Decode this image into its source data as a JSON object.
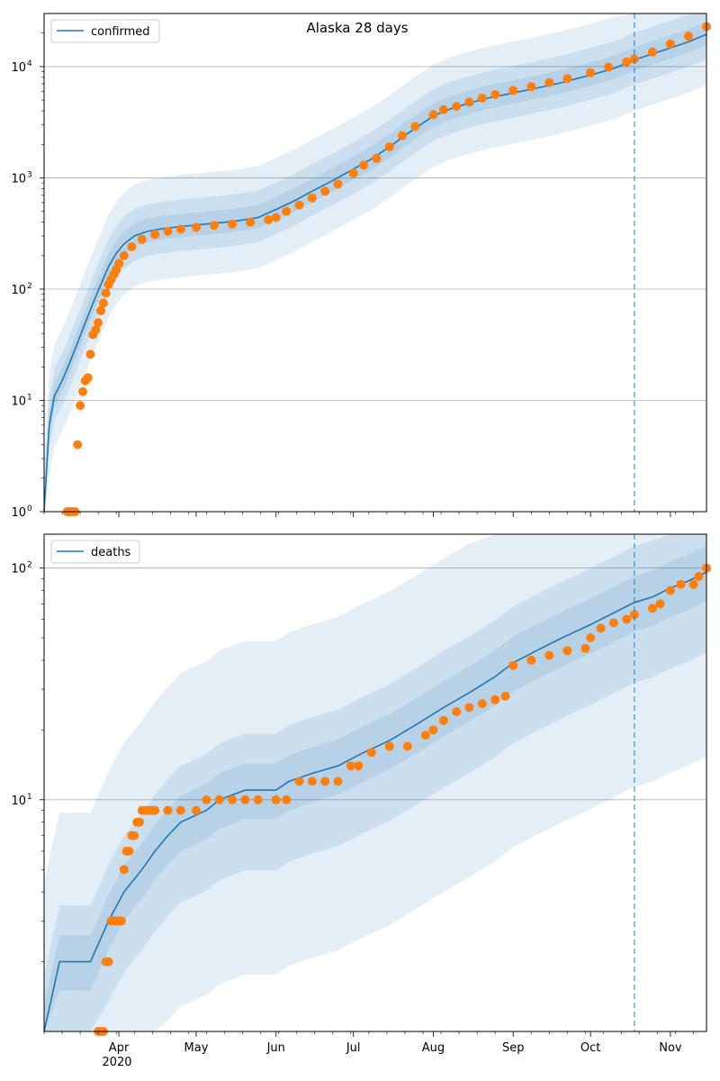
{
  "figure_title": "Alaska 28 days",
  "colors": {
    "model_line": "#1f77b4",
    "observed": "#ff7f0e",
    "band": "#1f77b4",
    "grid": "#b0b0b0",
    "forecast_line": "#1f77b4"
  },
  "x_axis": {
    "labels": [
      {
        "date": "2020-04-01",
        "text": "Apr"
      },
      {
        "date": "2020-05-01",
        "text": "May"
      },
      {
        "date": "2020-06-01",
        "text": "Jun"
      },
      {
        "date": "2020-07-01",
        "text": "Jul"
      },
      {
        "date": "2020-08-01",
        "text": "Aug"
      },
      {
        "date": "2020-09-01",
        "text": "Sep"
      },
      {
        "date": "2020-10-01",
        "text": "Oct"
      },
      {
        "date": "2020-11-01",
        "text": "Nov"
      }
    ],
    "year_label": "2020"
  },
  "chart_data": [
    {
      "type": "line",
      "legend": "confirmed",
      "legend_position": "top-left",
      "yscale": "log",
      "ylim": [
        1,
        30000
      ],
      "xlim": [
        "2020-03-03",
        "2020-11-15"
      ],
      "forecast_date": "2020-10-18",
      "grid": "horizontal",
      "y_ticks": [
        {
          "value": 1,
          "label": "10",
          "exp": "0"
        },
        {
          "value": 10,
          "label": "10",
          "exp": "1"
        },
        {
          "value": 100,
          "label": "10",
          "exp": "2"
        },
        {
          "value": 1000,
          "label": "10",
          "exp": "3"
        },
        {
          "value": 10000,
          "label": "10",
          "exp": "4"
        }
      ],
      "model": {
        "x": [
          "2020-03-03",
          "2020-03-05",
          "2020-03-07",
          "2020-03-10",
          "2020-03-13",
          "2020-03-16",
          "2020-03-19",
          "2020-03-22",
          "2020-03-25",
          "2020-03-28",
          "2020-03-31",
          "2020-04-03",
          "2020-04-07",
          "2020-04-12",
          "2020-04-18",
          "2020-04-25",
          "2020-05-05",
          "2020-05-15",
          "2020-05-25",
          "2020-06-01",
          "2020-06-08",
          "2020-06-15",
          "2020-06-22",
          "2020-07-01",
          "2020-07-08",
          "2020-07-15",
          "2020-07-22",
          "2020-08-01",
          "2020-08-08",
          "2020-08-15",
          "2020-08-22",
          "2020-09-01",
          "2020-09-10",
          "2020-09-20",
          "2020-10-01",
          "2020-10-10",
          "2020-10-18",
          "2020-10-25",
          "2020-11-01",
          "2020-11-08",
          "2020-11-15"
        ],
        "y": [
          1,
          6,
          11,
          15,
          22,
          33,
          50,
          75,
          110,
          160,
          210,
          255,
          300,
          330,
          350,
          365,
          385,
          405,
          440,
          520,
          620,
          760,
          920,
          1200,
          1480,
          1900,
          2500,
          3600,
          4200,
          4700,
          5200,
          5800,
          6400,
          7200,
          8400,
          9600,
          11500,
          13000,
          14700,
          16700,
          19500
        ],
        "band_rel": [
          [
            0.35,
            2.9
          ],
          [
            0.6,
            1.75
          ],
          [
            0.8,
            1.3
          ]
        ]
      },
      "observed": {
        "x": [
          "2020-03-12",
          "2020-03-13",
          "2020-03-14",
          "2020-03-15",
          "2020-03-16",
          "2020-03-17",
          "2020-03-18",
          "2020-03-19",
          "2020-03-20",
          "2020-03-21",
          "2020-03-22",
          "2020-03-23",
          "2020-03-24",
          "2020-03-25",
          "2020-03-26",
          "2020-03-27",
          "2020-03-28",
          "2020-03-29",
          "2020-03-30",
          "2020-03-31",
          "2020-04-01",
          "2020-04-03",
          "2020-04-06",
          "2020-04-10",
          "2020-04-15",
          "2020-04-20",
          "2020-04-25",
          "2020-05-01",
          "2020-05-08",
          "2020-05-15",
          "2020-05-22",
          "2020-05-29",
          "2020-06-01",
          "2020-06-05",
          "2020-06-10",
          "2020-06-15",
          "2020-06-20",
          "2020-06-25",
          "2020-07-01",
          "2020-07-05",
          "2020-07-10",
          "2020-07-15",
          "2020-07-20",
          "2020-07-25",
          "2020-08-01",
          "2020-08-05",
          "2020-08-10",
          "2020-08-15",
          "2020-08-20",
          "2020-08-25",
          "2020-09-01",
          "2020-09-08",
          "2020-09-15",
          "2020-09-22",
          "2020-10-01",
          "2020-10-08",
          "2020-10-15",
          "2020-10-18",
          "2020-10-25",
          "2020-11-01",
          "2020-11-08",
          "2020-11-15"
        ],
        "y": [
          1,
          1,
          1,
          1,
          4,
          9,
          12,
          15,
          16,
          26,
          39,
          43,
          50,
          64,
          75,
          92,
          110,
          122,
          135,
          150,
          170,
          200,
          240,
          280,
          310,
          330,
          345,
          360,
          375,
          385,
          400,
          420,
          440,
          500,
          570,
          660,
          760,
          880,
          1100,
          1300,
          1500,
          1900,
          2400,
          2900,
          3700,
          4100,
          4400,
          4800,
          5200,
          5600,
          6100,
          6600,
          7200,
          7800,
          8800,
          9900,
          11000,
          11700,
          13500,
          16000,
          18800,
          22900
        ]
      }
    },
    {
      "type": "line",
      "legend": "deaths",
      "legend_position": "top-left",
      "yscale": "log",
      "ylim": [
        1,
        140
      ],
      "xlim": [
        "2020-03-03",
        "2020-11-15"
      ],
      "forecast_date": "2020-10-18",
      "grid": "horizontal",
      "y_ticks": [
        {
          "value": 10,
          "label": "10",
          "exp": "1"
        },
        {
          "value": 100,
          "label": "10",
          "exp": "2"
        }
      ],
      "model": {
        "x": [
          "2020-03-03",
          "2020-03-09",
          "2020-03-21",
          "2020-03-28",
          "2020-04-03",
          "2020-04-10",
          "2020-04-15",
          "2020-04-20",
          "2020-04-25",
          "2020-05-05",
          "2020-05-10",
          "2020-05-20",
          "2020-06-01",
          "2020-06-06",
          "2020-06-15",
          "2020-06-25",
          "2020-07-05",
          "2020-07-15",
          "2020-07-25",
          "2020-08-05",
          "2020-08-15",
          "2020-08-25",
          "2020-09-01",
          "2020-09-10",
          "2020-09-20",
          "2020-10-01",
          "2020-10-10",
          "2020-10-18",
          "2020-10-25",
          "2020-11-01",
          "2020-11-08",
          "2020-11-15"
        ],
        "y": [
          1,
          2,
          2,
          3,
          4,
          5,
          6,
          7,
          8,
          9,
          10,
          11,
          11,
          12,
          13,
          14,
          16,
          18,
          21,
          25,
          29,
          34,
          39,
          44,
          50,
          57,
          64,
          71,
          75,
          82,
          88,
          96
        ],
        "band_rel": [
          [
            0.16,
            4.4
          ],
          [
            0.45,
            1.75
          ],
          [
            0.75,
            1.3
          ]
        ]
      },
      "observed": {
        "x": [
          "2020-03-24",
          "2020-03-25",
          "2020-03-26",
          "2020-03-27",
          "2020-03-28",
          "2020-03-29",
          "2020-03-30",
          "2020-03-31",
          "2020-04-01",
          "2020-04-02",
          "2020-04-03",
          "2020-04-04",
          "2020-04-05",
          "2020-04-06",
          "2020-04-07",
          "2020-04-08",
          "2020-04-09",
          "2020-04-10",
          "2020-04-11",
          "2020-04-12",
          "2020-04-13",
          "2020-04-14",
          "2020-04-15",
          "2020-04-20",
          "2020-04-25",
          "2020-05-01",
          "2020-05-05",
          "2020-05-10",
          "2020-05-15",
          "2020-05-20",
          "2020-05-25",
          "2020-06-01",
          "2020-06-05",
          "2020-06-10",
          "2020-06-15",
          "2020-06-20",
          "2020-06-25",
          "2020-06-30",
          "2020-07-03",
          "2020-07-08",
          "2020-07-15",
          "2020-07-22",
          "2020-07-29",
          "2020-08-01",
          "2020-08-05",
          "2020-08-10",
          "2020-08-15",
          "2020-08-20",
          "2020-08-25",
          "2020-08-29",
          "2020-09-01",
          "2020-09-08",
          "2020-09-15",
          "2020-09-22",
          "2020-09-29",
          "2020-10-01",
          "2020-10-05",
          "2020-10-10",
          "2020-10-15",
          "2020-10-18",
          "2020-10-25",
          "2020-10-28",
          "2020-11-01",
          "2020-11-05",
          "2020-11-10",
          "2020-11-12",
          "2020-11-15"
        ],
        "y": [
          1,
          1,
          1,
          2,
          2,
          3,
          3,
          3,
          3,
          3,
          5,
          6,
          6,
          7,
          7,
          8,
          8,
          9,
          9,
          9,
          9,
          9,
          9,
          9,
          9,
          9,
          10,
          10,
          10,
          10,
          10,
          10,
          10,
          12,
          12,
          12,
          12,
          14,
          14,
          16,
          17,
          17,
          19,
          20,
          22,
          24,
          25,
          26,
          27,
          28,
          38,
          40,
          42,
          44,
          45,
          50,
          55,
          58,
          60,
          63,
          67,
          70,
          80,
          85,
          85,
          92,
          100
        ]
      }
    }
  ]
}
